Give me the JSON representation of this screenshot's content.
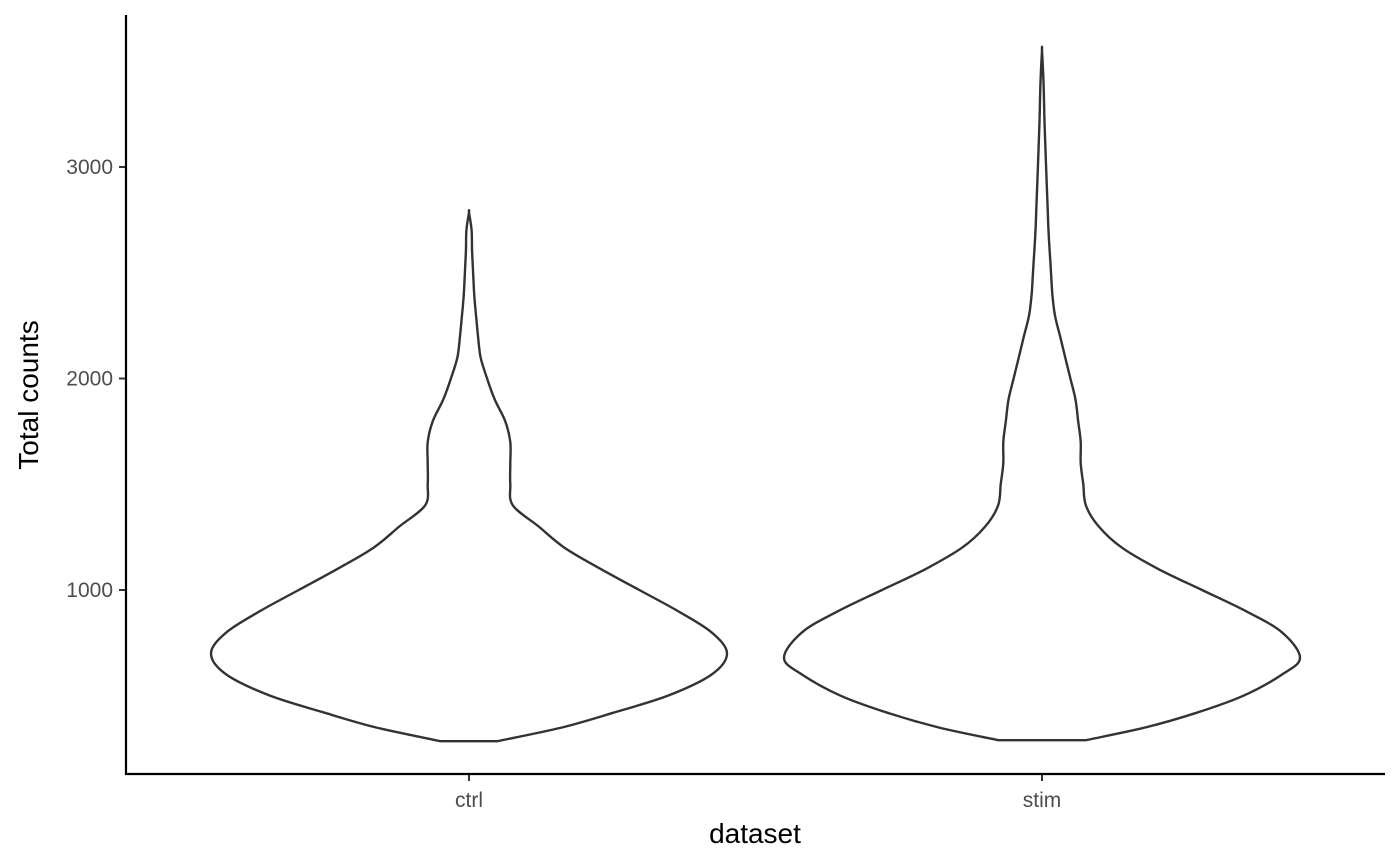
{
  "chart_data": {
    "type": "violin",
    "title": "",
    "xlabel": "dataset",
    "ylabel": "Total counts",
    "categories": [
      "ctrl",
      "stim"
    ],
    "ylim": [
      130,
      3700
    ],
    "yticks": [
      1000,
      2000,
      3000
    ],
    "ytick_labels": [
      "1000",
      "2000",
      "3000"
    ],
    "grid": false,
    "legend": "none",
    "colors": {
      "outline": "#333333",
      "fill": "#ffffff",
      "axis": "#000000",
      "tick_text": "#4d4d4d"
    },
    "series": [
      {
        "category": "ctrl",
        "min": 285,
        "max": 2785,
        "density_profile": [
          [
            285,
            0.11
          ],
          [
            350,
            0.36
          ],
          [
            420,
            0.56
          ],
          [
            500,
            0.77
          ],
          [
            600,
            0.94
          ],
          [
            700,
            1.0
          ],
          [
            800,
            0.94
          ],
          [
            900,
            0.81
          ],
          [
            1000,
            0.66
          ],
          [
            1100,
            0.51
          ],
          [
            1200,
            0.37
          ],
          [
            1300,
            0.27
          ],
          [
            1400,
            0.17
          ],
          [
            1500,
            0.16
          ],
          [
            1600,
            0.16
          ],
          [
            1700,
            0.16
          ],
          [
            1800,
            0.14
          ],
          [
            1900,
            0.1
          ],
          [
            2000,
            0.07
          ],
          [
            2100,
            0.045
          ],
          [
            2200,
            0.035
          ],
          [
            2300,
            0.027
          ],
          [
            2400,
            0.02
          ],
          [
            2500,
            0.016
          ],
          [
            2600,
            0.012
          ],
          [
            2700,
            0.01
          ],
          [
            2785,
            0.0
          ]
        ]
      },
      {
        "category": "stim",
        "min": 290,
        "max": 3550,
        "density_profile": [
          [
            290,
            0.17
          ],
          [
            350,
            0.4
          ],
          [
            420,
            0.6
          ],
          [
            500,
            0.78
          ],
          [
            600,
            0.93
          ],
          [
            680,
            1.0
          ],
          [
            800,
            0.93
          ],
          [
            900,
            0.79
          ],
          [
            1000,
            0.62
          ],
          [
            1100,
            0.45
          ],
          [
            1200,
            0.31
          ],
          [
            1300,
            0.22
          ],
          [
            1400,
            0.17
          ],
          [
            1500,
            0.16
          ],
          [
            1600,
            0.15
          ],
          [
            1700,
            0.15
          ],
          [
            1800,
            0.14
          ],
          [
            1900,
            0.13
          ],
          [
            2000,
            0.11
          ],
          [
            2100,
            0.09
          ],
          [
            2200,
            0.07
          ],
          [
            2300,
            0.05
          ],
          [
            2400,
            0.04
          ],
          [
            2500,
            0.035
          ],
          [
            2600,
            0.03
          ],
          [
            2700,
            0.025
          ],
          [
            2800,
            0.022
          ],
          [
            3000,
            0.016
          ],
          [
            3200,
            0.01
          ],
          [
            3400,
            0.006
          ],
          [
            3550,
            0.0
          ]
        ]
      }
    ]
  }
}
